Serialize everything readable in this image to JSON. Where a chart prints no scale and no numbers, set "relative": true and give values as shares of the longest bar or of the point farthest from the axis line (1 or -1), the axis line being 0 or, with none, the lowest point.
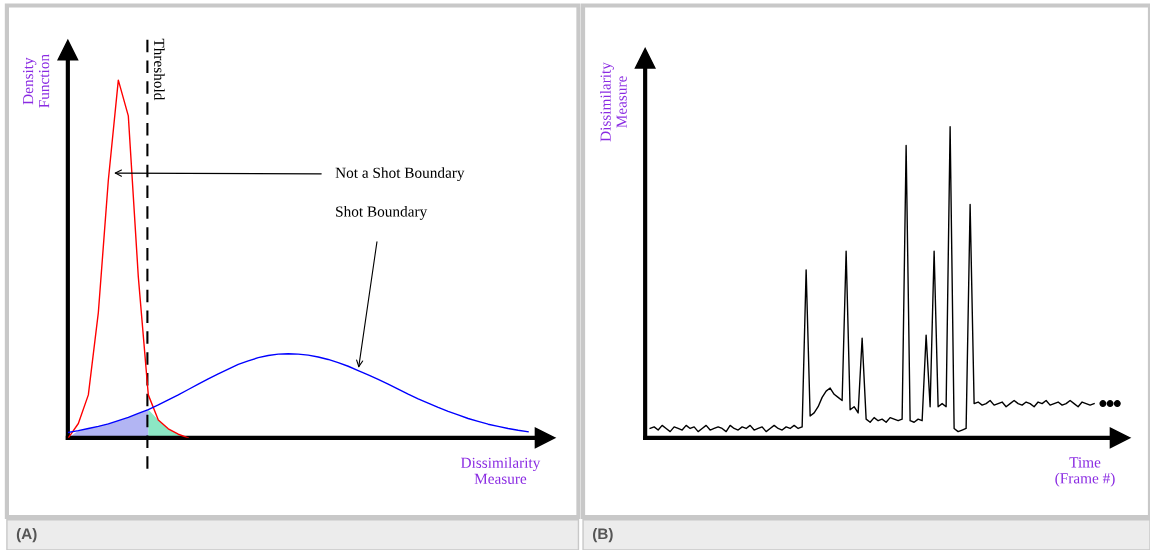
{
  "chart_data": [
    {
      "type": "line",
      "relative": true,
      "xlabel": "Dissimilarity\nMeasure",
      "ylabel": "Density\nFunction",
      "categories": [
        null,
        null,
        null,
        null,
        null,
        null,
        null,
        null,
        null,
        null,
        null,
        null,
        null,
        null,
        null,
        null,
        null,
        null,
        null,
        null,
        null,
        null,
        null,
        null,
        null,
        null,
        null,
        null,
        null,
        null,
        null,
        null,
        null,
        null,
        null,
        null,
        null,
        null,
        null,
        null,
        null,
        null,
        null,
        null,
        null,
        null,
        null
      ],
      "series": [
        {
          "color": "#ff0000",
          "values": [
            0,
            0.04,
            0.12,
            0.35,
            0.72,
            1.0,
            0.9,
            0.45,
            0.12,
            0.05,
            0.025,
            0.01,
            0.0,
            null,
            null,
            null,
            null,
            null,
            null,
            null,
            null,
            null,
            null,
            null,
            null,
            null,
            null,
            null,
            null,
            null,
            null,
            null,
            null,
            null,
            null,
            null,
            null,
            null,
            null,
            null,
            null,
            null,
            null,
            null,
            null,
            null,
            null
          ]
        },
        {
          "color": "#0000ff",
          "values": [
            0.015,
            0.02,
            0.026,
            0.032,
            0.039,
            0.048,
            0.057,
            0.068,
            0.079,
            0.092,
            0.106,
            0.12,
            0.135,
            0.15,
            0.165,
            0.179,
            0.192,
            0.205,
            0.215,
            0.224,
            0.23,
            0.234,
            0.235,
            0.234,
            0.231,
            0.226,
            0.219,
            0.21,
            0.2,
            0.188,
            0.176,
            0.163,
            0.15,
            0.136,
            0.122,
            0.109,
            0.097,
            0.085,
            0.074,
            0.064,
            0.054,
            0.046,
            0.038,
            0.032,
            0.026,
            0.021,
            0.017
          ]
        }
      ],
      "annotations": [
        "Threshold",
        "Not a Shot Boundary",
        "Shot Boundary",
        "(A)"
      ]
    },
    {
      "type": "line",
      "relative": true,
      "xlabel": "Time\n(Frame #)",
      "ylabel": "Dissimilarity\nMeasure",
      "categories": [
        null,
        null,
        null,
        null,
        null,
        null,
        null,
        null,
        null,
        null,
        null,
        null,
        null,
        null,
        null,
        null,
        null,
        null,
        null,
        null,
        null,
        null,
        null,
        null,
        null,
        null,
        null,
        null,
        null,
        null,
        null,
        null,
        null,
        null,
        null,
        null,
        null,
        null,
        null,
        null,
        null,
        null,
        null,
        null,
        null,
        null,
        null,
        null,
        null,
        null,
        null,
        null,
        null,
        null,
        null,
        null,
        null,
        null,
        null,
        null,
        null,
        null,
        null,
        null,
        null,
        null,
        null,
        null,
        null,
        null,
        null,
        null,
        null,
        null,
        null,
        null,
        null,
        null,
        null,
        null,
        null,
        null,
        null,
        null,
        null,
        null,
        null,
        null,
        null,
        null,
        null,
        null,
        null,
        null,
        null,
        null,
        null,
        null,
        null,
        null,
        null,
        null,
        null,
        null,
        null,
        null,
        null,
        null,
        null,
        null,
        null,
        null
      ],
      "series": [
        {
          "color": "#000000",
          "values": [
            0.03,
            0.035,
            0.025,
            0.04,
            0.03,
            0.02,
            0.035,
            0.03,
            0.025,
            0.04,
            0.03,
            0.035,
            0.02,
            0.03,
            0.04,
            0.025,
            0.03,
            0.035,
            0.03,
            0.02,
            0.04,
            0.03,
            0.025,
            0.035,
            0.03,
            0.04,
            0.025,
            0.03,
            0.035,
            0.02,
            0.03,
            0.04,
            0.03,
            0.025,
            0.035,
            0.03,
            0.04,
            0.03,
            0.035,
            0.54,
            0.07,
            0.08,
            0.1,
            0.13,
            0.15,
            0.16,
            0.14,
            0.13,
            0.12,
            0.6,
            0.09,
            0.1,
            0.08,
            0.32,
            0.06,
            0.05,
            0.065,
            0.055,
            0.06,
            0.05,
            0.065,
            0.06,
            0.055,
            0.06,
            0.94,
            0.055,
            0.05,
            0.06,
            0.055,
            0.33,
            0.1,
            0.6,
            0.1,
            0.11,
            0.1,
            1.0,
            0.03,
            0.02,
            0.025,
            0.03,
            0.75,
            0.11,
            0.115,
            0.105,
            0.11,
            0.12,
            0.105,
            0.11,
            0.115,
            0.1,
            0.11,
            0.12,
            0.11,
            0.105,
            0.115,
            0.11,
            0.1,
            0.115,
            0.11,
            0.12,
            0.105,
            0.11,
            0.115,
            0.105,
            0.11,
            0.12,
            0.11,
            0.1,
            0.115,
            0.11,
            0.105,
            0.11
          ]
        }
      ],
      "annotations": [
        "(B)"
      ]
    }
  ]
}
